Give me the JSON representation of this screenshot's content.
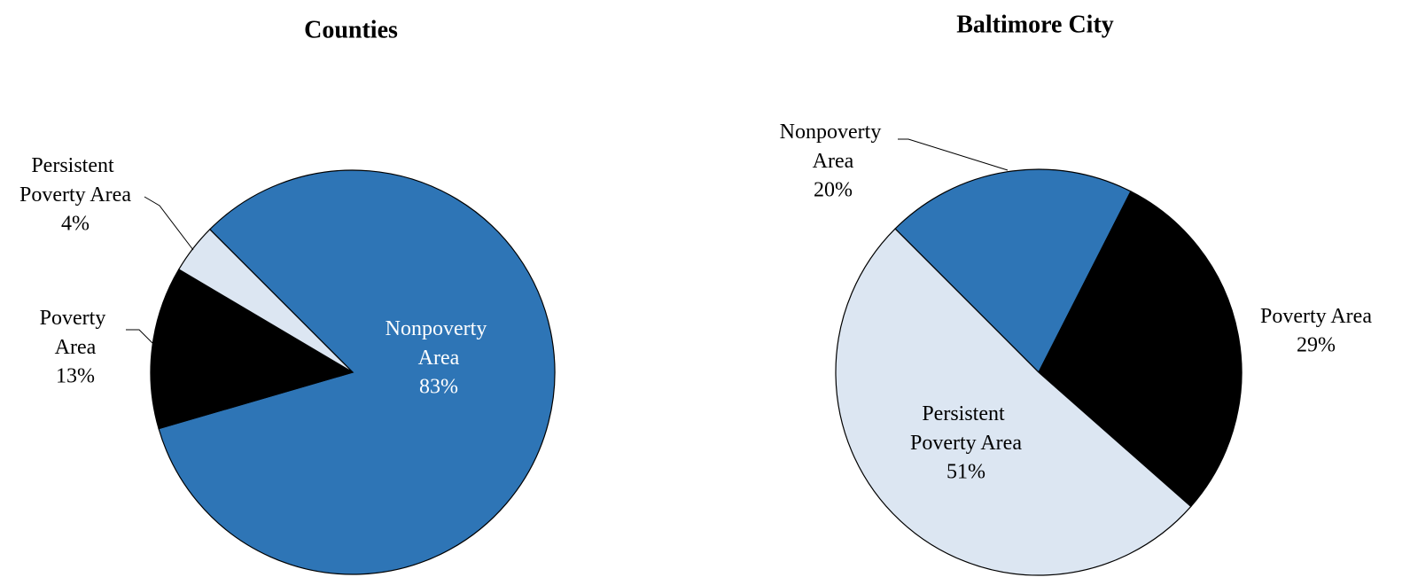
{
  "chart_data": [
    {
      "type": "pie",
      "title": "Counties",
      "categories": [
        "Nonpoverty Area",
        "Poverty Area",
        "Persistent Poverty Area"
      ],
      "values": [
        83,
        13,
        4
      ],
      "value_labels": [
        "83%",
        "13%",
        "4%"
      ],
      "colors": [
        "#2e75b6",
        "#000000",
        "#dce6f2"
      ]
    },
    {
      "type": "pie",
      "title": "Baltimore City",
      "categories": [
        "Nonpoverty Area",
        "Poverty Area",
        "Persistent Poverty Area"
      ],
      "values": [
        20,
        29,
        51
      ],
      "value_labels": [
        "20%",
        "29%",
        "51%"
      ],
      "colors": [
        "#2e75b6",
        "#000000",
        "#dce6f2"
      ]
    }
  ]
}
